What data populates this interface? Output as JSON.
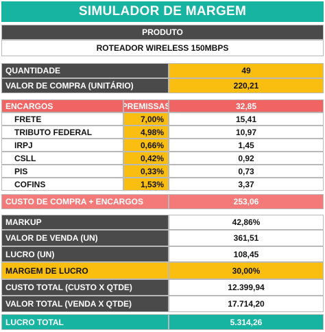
{
  "title": "SIMULADOR DE MARGEM",
  "produto": {
    "label": "PRODUTO",
    "value": "ROTEADOR WIRELESS 150MBPS"
  },
  "quantidade": {
    "label": "QUANTIDADE",
    "value": "49"
  },
  "valor_compra": {
    "label": "VALOR DE COMPRA (UNITÁRIO)",
    "value": "220,21"
  },
  "encargos": {
    "label": "ENCARGOS",
    "premissas_label": "PREMISSAS",
    "total": "32,85",
    "items": [
      {
        "name": "FRETE",
        "pct": "7,00%",
        "value": "15,41"
      },
      {
        "name": "TRIBUTO FEDERAL",
        "pct": "4,98%",
        "value": "10,97"
      },
      {
        "name": "IRPJ",
        "pct": "0,66%",
        "value": "1,45"
      },
      {
        "name": "CSLL",
        "pct": "0,42%",
        "value": "0,92"
      },
      {
        "name": "PIS",
        "pct": "0,33%",
        "value": "0,73"
      },
      {
        "name": "COFINS",
        "pct": "1,53%",
        "value": "3,37"
      }
    ]
  },
  "custo_compra": {
    "label": "CUSTO DE COMPRA + ENCARGOS",
    "value": "253,06"
  },
  "markup": {
    "label": "MARKUP",
    "value": "42,86%"
  },
  "valor_venda": {
    "label": "VALOR DE VENDA (UN)",
    "value": "361,51"
  },
  "lucro_un": {
    "label": "LUCRO (UN)",
    "value": "108,45"
  },
  "margem": {
    "label": "MARGEM DE LUCRO",
    "value": "30,00%"
  },
  "custo_total": {
    "label": "CUSTO TOTAL (CUSTO X QTDE)",
    "value": "12.399,94"
  },
  "valor_total": {
    "label": "VALOR TOTAL (VENDA X QTDE)",
    "value": "17.714,20"
  },
  "lucro_total": {
    "label": "LUCRO TOTAL",
    "value": "5.314,26"
  },
  "colors": {
    "teal": "#17b4a1",
    "dark": "#4a4a4a",
    "gold": "#f9be0f",
    "red": "#f16464"
  }
}
